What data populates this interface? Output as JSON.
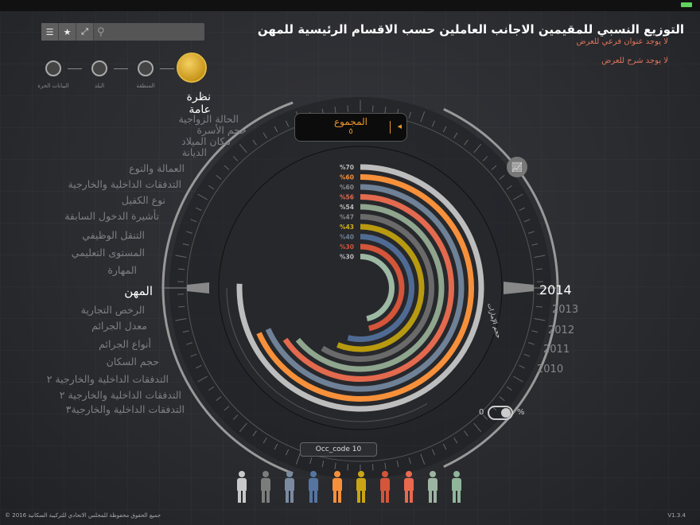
{
  "header": {
    "title": "التوزيع النسبي للمقيمين الاجانب العاملين حسب الاقسام الرئيسية للمهن",
    "subtitle": "لا يوجد عنوان فرعي للعرض",
    "description": "لا يوجد شرح للعرض"
  },
  "toolbar": {
    "icons": [
      "menu-icon",
      "star-icon",
      "expand-icon",
      "search-icon"
    ]
  },
  "breadcrumb": {
    "items": [
      "البيانات الحرة",
      "البلد",
      "المنطقة"
    ],
    "current": "نظرة عامة"
  },
  "categories": {
    "items": [
      "الحالة الزواجية",
      "حجم الأسرة",
      "مكان الميلاد",
      "الديانة",
      "العمالة والنوع",
      "التدفقات الداخلية والخارجية",
      "نوع الكفيل",
      "تأشيرة الدخول السابقة",
      "التنقل الوظيفي",
      "المستوى التعليمي",
      "المهارة",
      "المهن",
      "الرخص التجارية",
      "معدل الجرائم",
      "أنواع الجرائم",
      "حجم السكان",
      "التدفقات الداخلية والخارجية ٢",
      "التدفقات الداخلية والخارجية ٢",
      "التدفقات الداخلية والخارجية٣"
    ],
    "selected": "المهن"
  },
  "years": {
    "items": [
      "2014",
      "2013",
      "2012",
      "2011",
      "2010"
    ],
    "selected": "2014"
  },
  "total": {
    "label": "المجموع",
    "value": "٥"
  },
  "toggle": {
    "left": "0",
    "right": "%",
    "on": true
  },
  "region_label": "حجم الإمارات",
  "tooltip": "Occ_code 10",
  "chart_data": {
    "type": "radial-bar",
    "labels": [
      "%70",
      "%60",
      "%60",
      "%56",
      "%54",
      "%47",
      "%43",
      "%40",
      "%30",
      "%30"
    ],
    "values": [
      70,
      60,
      60,
      56,
      54,
      47,
      43,
      40,
      30,
      30
    ],
    "colors": [
      "#bdbdbd",
      "#f7903a",
      "#6f8196",
      "#e36a4e",
      "#8fa58e",
      "#6a6a6a",
      "#b89a10",
      "#4f6b94",
      "#d4553a",
      "#9db8a3"
    ],
    "label_colors": [
      "#bbbbbb",
      "#f7903a",
      "#888888",
      "#e36a4e",
      "#bbbbbb",
      "#888888",
      "#d4b21a",
      "#6f8196",
      "#d4553a",
      "#bbbbbb"
    ]
  },
  "footer": {
    "copyright": "جميع الحقوق محفوظة للمجلس الاتحادي للتركيبة السكانية 2016 ©",
    "version": "V1.3.4"
  }
}
